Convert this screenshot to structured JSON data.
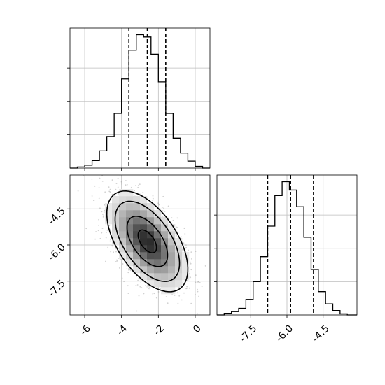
{
  "chart_data": {
    "type": "corner",
    "parameters": [
      {
        "range": [
          -6.8,
          0.8
        ],
        "quantiles": [
          -3.6,
          -2.6,
          -1.6
        ]
      },
      {
        "range": [
          -8.9,
          -3.1
        ],
        "quantiles": [
          -6.8,
          -5.85,
          -4.9
        ]
      }
    ],
    "ticks": {
      "x0": [
        "-6",
        "-4",
        "-2",
        "0"
      ],
      "y1": [
        "-4.5",
        "-6.0",
        "-7.5"
      ],
      "x1": [
        "-7.5",
        "-6.0",
        "-4.5"
      ]
    },
    "hist_param0": {
      "bin_edges": [
        -6.8,
        -6.4,
        -6.0,
        -5.6,
        -5.2,
        -4.8,
        -4.4,
        -4.0,
        -3.6,
        -3.2,
        -2.8,
        -2.4,
        -2.0,
        -1.6,
        -1.2,
        -0.8,
        -0.4,
        0.0,
        0.4,
        0.8
      ],
      "counts": [
        0,
        2,
        5,
        13,
        30,
        55,
        95,
        155,
        205,
        232,
        228,
        198,
        150,
        95,
        52,
        26,
        12,
        3,
        0
      ]
    },
    "hist_param1": {
      "bin_edges": [
        -8.9,
        -8.6,
        -8.3,
        -8.0,
        -7.7,
        -7.4,
        -7.1,
        -6.8,
        -6.5,
        -6.2,
        -5.9,
        -5.6,
        -5.3,
        -5.0,
        -4.7,
        -4.4,
        -4.1,
        -3.8,
        -3.5,
        -3.1
      ],
      "counts": [
        0,
        3,
        6,
        12,
        28,
        60,
        105,
        160,
        215,
        240,
        225,
        195,
        140,
        82,
        42,
        20,
        8,
        2,
        0
      ]
    },
    "scatter": {
      "mean": [
        -2.6,
        -5.85
      ],
      "std": [
        1.0,
        0.95
      ],
      "correlation": -0.55,
      "n_points": 2000
    },
    "contour_levels": [
      0.5,
      1.1,
      1.75,
      2.2
    ],
    "grid": true
  }
}
